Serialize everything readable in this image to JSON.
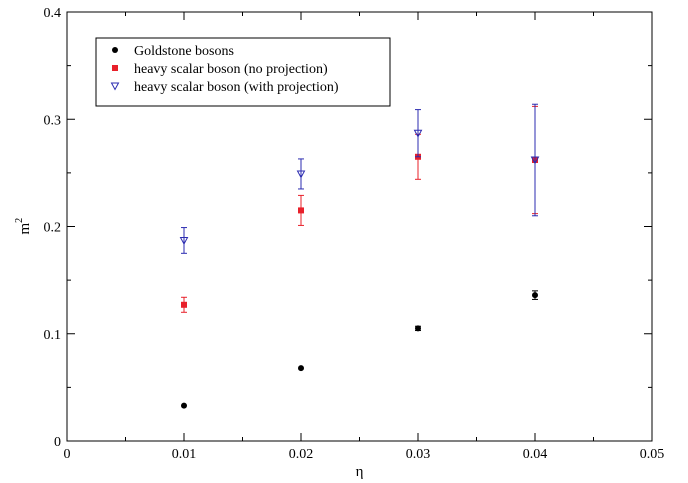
{
  "chart_data": {
    "type": "scatter",
    "xlabel": "η",
    "ylabel_base": "m",
    "ylabel_sup": "2",
    "xlim": [
      0,
      0.05
    ],
    "ylim": [
      0,
      0.4
    ],
    "xticks": [
      "0",
      "0.01",
      "0.02",
      "0.03",
      "0.04",
      "0.05"
    ],
    "yticks": [
      "0",
      "0.1",
      "0.2",
      "0.3",
      "0.4"
    ],
    "grid": false,
    "legend_position": "top-left",
    "series": [
      {
        "name": "Goldstone bosons",
        "marker": "circle",
        "color": "#000000",
        "points": [
          {
            "x": 0.01,
            "y": 0.033,
            "err": 0.0
          },
          {
            "x": 0.02,
            "y": 0.068,
            "err": 0.0
          },
          {
            "x": 0.03,
            "y": 0.105,
            "err": 0.002
          },
          {
            "x": 0.04,
            "y": 0.136,
            "err": 0.004
          }
        ]
      },
      {
        "name": "heavy scalar boson (no projection)",
        "marker": "square",
        "color": "#e8202a",
        "points": [
          {
            "x": 0.01,
            "y": 0.127,
            "err": 0.007
          },
          {
            "x": 0.02,
            "y": 0.215,
            "err": 0.014
          },
          {
            "x": 0.03,
            "y": 0.265,
            "err": 0.021
          },
          {
            "x": 0.04,
            "y": 0.262,
            "err": 0.05
          }
        ]
      },
      {
        "name": "heavy scalar boson (with projection)",
        "marker": "triangle-down",
        "color": "#2b2bb0",
        "points": [
          {
            "x": 0.01,
            "y": 0.187,
            "err": 0.012
          },
          {
            "x": 0.02,
            "y": 0.249,
            "err": 0.014
          },
          {
            "x": 0.03,
            "y": 0.287,
            "err": 0.022
          },
          {
            "x": 0.04,
            "y": 0.262,
            "err": 0.052
          }
        ]
      }
    ]
  }
}
